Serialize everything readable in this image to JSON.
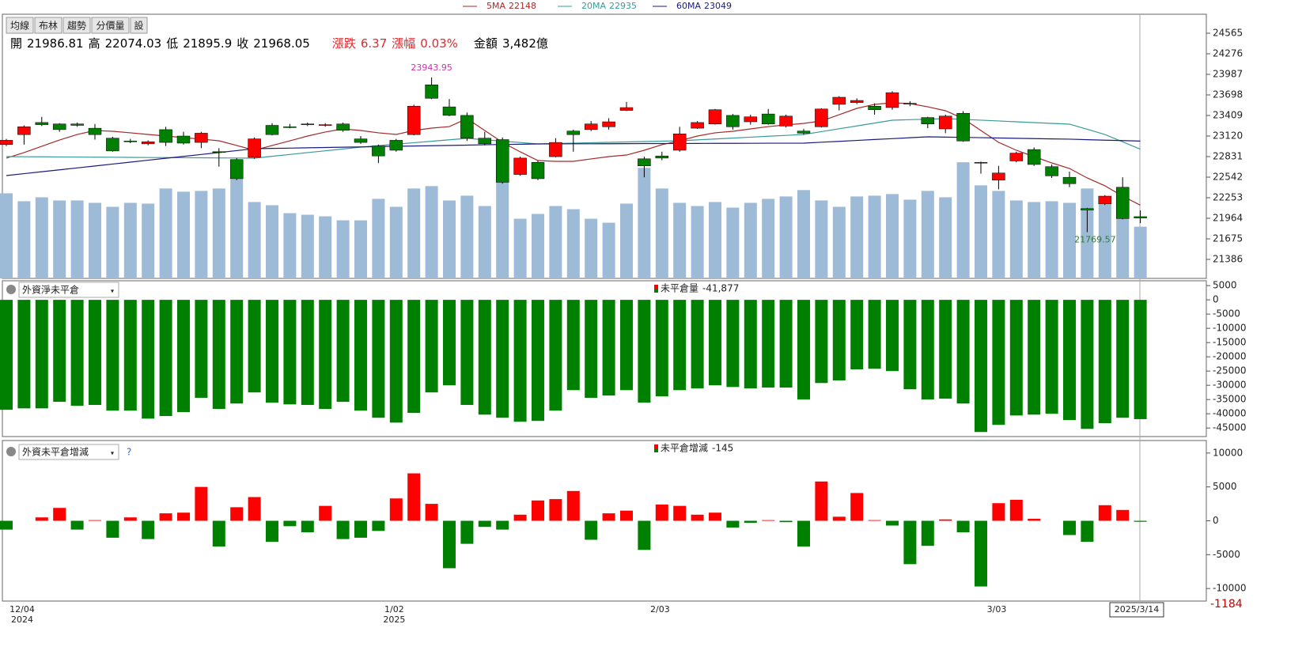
{
  "toolbar": [
    "均線",
    "布林",
    "趨勢",
    "分價量",
    "設"
  ],
  "quote": [
    {
      "label": "開",
      "value": "21986.81"
    },
    {
      "label": "高",
      "value": "22074.03"
    },
    {
      "label": "低",
      "value": "21895.9"
    },
    {
      "label": "收",
      "value": "21968.05"
    },
    {
      "label": "漲跌",
      "value": "6.37",
      "color": "#e0282e"
    },
    {
      "label": "漲幅",
      "value": "0.03%",
      "color": "#e0282e"
    },
    {
      "label": "金額",
      "value": "3,482億"
    }
  ],
  "chart_data": [
    {
      "type": "candlestick",
      "categories": [
        "12/04",
        null,
        null,
        null,
        null,
        null,
        null,
        null,
        null,
        null,
        null,
        null,
        null,
        null,
        null,
        null,
        null,
        null,
        null,
        null,
        null,
        "1/02",
        null,
        null,
        null,
        null,
        null,
        null,
        null,
        null,
        null,
        null,
        null,
        null,
        null,
        null,
        "2/03",
        null,
        null,
        null,
        null,
        null,
        null,
        null,
        null,
        null,
        null,
        null,
        null,
        null,
        null,
        null,
        null,
        null,
        null,
        "3/03",
        null,
        null,
        null,
        null,
        null,
        null,
        null,
        null,
        "2025/3/14"
      ],
      "year_labels": [
        "2024",
        null,
        null,
        null,
        null,
        null,
        null,
        null,
        null,
        null,
        null,
        null,
        null,
        null,
        null,
        null,
        null,
        null,
        null,
        null,
        null,
        "2025",
        null,
        null,
        null,
        null,
        null,
        null,
        null,
        null,
        null,
        null,
        null,
        null,
        null,
        null,
        null,
        null,
        null,
        null,
        null,
        null,
        null,
        null,
        null,
        null,
        null,
        null,
        null,
        null,
        null,
        null,
        null,
        null,
        null,
        null,
        null,
        null,
        null,
        null,
        null,
        null,
        null,
        null,
        null
      ],
      "open": [
        23000,
        23140,
        23310,
        23290,
        23290,
        23230,
        23090,
        23050,
        23010,
        23210,
        23120,
        23030,
        22900,
        22790,
        22820,
        23270,
        23250,
        23280,
        23270,
        23290,
        23080,
        22980,
        23060,
        23140,
        23840,
        23530,
        23410,
        23090,
        23070,
        22580,
        22750,
        22830,
        23190,
        23210,
        23250,
        23480,
        22800,
        22840,
        22920,
        23230,
        23290,
        23410,
        23320,
        23430,
        23260,
        23190,
        23250,
        23565,
        23590,
        23540,
        23520,
        23580,
        23380,
        23220,
        23440,
        22750,
        22500,
        22770,
        22930,
        22690,
        22540,
        22100,
        22165,
        22400,
        21986.81
      ],
      "high": [
        23080,
        23270,
        23390,
        23300,
        23310,
        23290,
        23110,
        23080,
        23060,
        23250,
        23180,
        23180,
        22950,
        22810,
        23100,
        23300,
        23290,
        23310,
        23300,
        23310,
        23120,
        23000,
        23080,
        23560,
        23943.95,
        23640,
        23450,
        23180,
        23100,
        22830,
        22770,
        23090,
        23210,
        23330,
        23370,
        23600,
        22830,
        22900,
        23250,
        23330,
        23500,
        23430,
        23420,
        23500,
        23420,
        23220,
        23510,
        23680,
        23650,
        23580,
        23750,
        23610,
        23390,
        23420,
        23470,
        22760,
        22700,
        22900,
        22960,
        22720,
        22620,
        22110,
        22290,
        22540,
        22074.03
      ],
      "low": [
        22980,
        23000,
        23260,
        23180,
        23250,
        23070,
        22900,
        23020,
        22990,
        22980,
        23000,
        22950,
        22690,
        22500,
        22800,
        23130,
        23230,
        23260,
        23250,
        23180,
        23010,
        22740,
        22900,
        23130,
        23640,
        23400,
        23050,
        22990,
        22450,
        22560,
        22500,
        22820,
        22900,
        23190,
        23210,
        23470,
        22540,
        22780,
        22900,
        23220,
        23280,
        23210,
        23280,
        23280,
        23240,
        23140,
        23240,
        23480,
        23570,
        23420,
        23490,
        23540,
        23230,
        23160,
        23040,
        22590,
        22370,
        22750,
        22700,
        22530,
        22400,
        21769.57,
        22150,
        21950,
        21895.9
      ],
      "close": [
        23060,
        23250,
        23280,
        23210,
        23270,
        23140,
        22910,
        23040,
        23040,
        23030,
        23020,
        23160,
        22890,
        22520,
        23080,
        23140,
        23240,
        23290,
        23280,
        23200,
        23030,
        22840,
        22920,
        23540,
        23650,
        23410,
        23090,
        23010,
        22470,
        22810,
        22520,
        23030,
        23140,
        23290,
        23320,
        23520,
        22700,
        22810,
        23150,
        23310,
        23490,
        23250,
        23390,
        23290,
        23400,
        23160,
        23500,
        23665,
        23620,
        23490,
        23730,
        23570,
        23290,
        23400,
        23050,
        22740,
        22600,
        22880,
        22720,
        22560,
        22450,
        22080,
        22275,
        21960,
        21968.05
      ],
      "up_color": "#ff0000",
      "down_color": "#008000",
      "series": [
        {
          "name": "5MA",
          "color": "#a52a2a",
          "values": [
            22809,
            22887,
            22976,
            23064,
            23142,
            23198,
            23187,
            23165,
            23142,
            23120,
            23098,
            23076,
            23053,
            22987,
            22920,
            22987,
            23053,
            23120,
            23176,
            23220,
            23198,
            23165,
            23142,
            23198,
            23231,
            23253,
            23365,
            23198,
            23031,
            22898,
            22775,
            22764,
            22764,
            22798,
            22831,
            22853,
            22920,
            22998,
            23053,
            23120,
            23165,
            23187,
            23220,
            23253,
            23276,
            23298,
            23331,
            23420,
            23509,
            23565,
            23587,
            23576,
            23531,
            23476,
            23365,
            23198,
            23031,
            22920,
            22831,
            22742,
            22664,
            22531,
            22420,
            22275,
            22148
          ]
        },
        {
          "name": "20MA",
          "color": "#3a9a9a",
          "values": [
            22831,
            22829,
            22828,
            22826,
            22825,
            22823,
            22822,
            22820,
            22818,
            22817,
            22815,
            22814,
            22812,
            22811,
            22809,
            22835,
            22861,
            22887,
            22912,
            22938,
            22964,
            22985,
            23005,
            23026,
            23046,
            23067,
            23087,
            23068,
            23048,
            23029,
            23009,
            23015,
            23020,
            23026,
            23031,
            23037,
            23042,
            23048,
            23053,
            23066,
            23078,
            23091,
            23104,
            23117,
            23129,
            23142,
            23182,
            23222,
            23262,
            23302,
            23342,
            23350,
            23357,
            23365,
            23354,
            23343,
            23332,
            23320,
            23309,
            23298,
            23287,
            23215,
            23142,
            23039,
            22935
          ]
        },
        {
          "name": "60MA",
          "color": "#1a1a80",
          "values": [
            22564,
            22591,
            22618,
            22645,
            22672,
            22699,
            22726,
            22753,
            22780,
            22807,
            22834,
            22861,
            22888,
            22915,
            22942,
            22946,
            22950,
            22955,
            22959,
            22963,
            22967,
            22971,
            22976,
            22980,
            22984,
            22988,
            22992,
            22997,
            23001,
            23005,
            23009,
            23010,
            23011,
            23011,
            23012,
            23013,
            23014,
            23014,
            23015,
            23016,
            23017,
            23017,
            23018,
            23019,
            23019,
            23020,
            23033,
            23045,
            23058,
            23071,
            23083,
            23096,
            23109,
            23105,
            23101,
            23097,
            23092,
            23088,
            23084,
            23080,
            23076,
            23069,
            23062,
            23056,
            23049
          ]
        }
      ],
      "volume": {
        "color": "#9dbbd6",
        "ylim": [
          0,
          17800
        ],
        "values": [
          5735,
          5199,
          5467,
          5253,
          5253,
          5092,
          4824,
          5092,
          5038,
          6057,
          5842,
          5896,
          6057,
          6700,
          5146,
          4931,
          4395,
          4288,
          4181,
          3913,
          3913,
          5360,
          4824,
          6057,
          6218,
          5253,
          5574,
          4878,
          6539,
          4020,
          4342,
          4878,
          4663,
          4020,
          3752,
          5038,
          7450,
          6057,
          5092,
          4878,
          5146,
          4770,
          5092,
          5360,
          5521,
          5950,
          5253,
          4824,
          5521,
          5574,
          5682,
          5306,
          5896,
          5467,
          7826,
          6271,
          5896,
          5253,
          5146,
          5199,
          5092,
          6057,
          4985,
          4020,
          3482
        ]
      },
      "annotations": [
        {
          "index": 24,
          "text": "23943.95",
          "color": "#cc33aa"
        },
        {
          "index": 61,
          "text": "21769.57",
          "color": "#2e7d32"
        }
      ],
      "ylim": [
        21119,
        24832
      ],
      "yticks": [
        24565,
        24276,
        23987,
        23698,
        23409,
        23120,
        22831,
        22542,
        22253,
        21964,
        21675,
        21386
      ]
    },
    {
      "type": "bar",
      "selector": "外資淨未平倉",
      "title": "未平倉量",
      "last_label": "-41,877",
      "color": "#008000",
      "values": [
        -38600,
        -38100,
        -38100,
        -35800,
        -37200,
        -36900,
        -38900,
        -38900,
        -41700,
        -40800,
        -39400,
        -34400,
        -38300,
        -36400,
        -32500,
        -36100,
        -36700,
        -36900,
        -38300,
        -35800,
        -38900,
        -41400,
        -43100,
        -39700,
        -32500,
        -30000,
        -36900,
        -40300,
        -41400,
        -42800,
        -42500,
        -38900,
        -31700,
        -34400,
        -33600,
        -31700,
        -36100,
        -33900,
        -31700,
        -31100,
        -30000,
        -30600,
        -31100,
        -30800,
        -30800,
        -35000,
        -29200,
        -28300,
        -24400,
        -24200,
        -25000,
        -31400,
        -35000,
        -34700,
        -36400,
        -46400,
        -43900,
        -40600,
        -40300,
        -40000,
        -42200,
        -45300,
        -43300,
        -41400,
        -41877
      ],
      "ylim": [
        -48000,
        6700
      ],
      "yticks": [
        5000,
        0,
        -5000,
        -10000,
        -15000,
        -20000,
        -25000,
        -30000,
        -35000,
        -40000,
        -45000
      ]
    },
    {
      "type": "bar",
      "selector": "外資未平倉增減",
      "help": "?",
      "title": "未平倉增減",
      "pos_color": "#ff0000",
      "neg_color": "#008000",
      "values": [
        -1300,
        0,
        500,
        1900,
        -1300,
        100,
        -2500,
        500,
        -2700,
        1100,
        1200,
        5000,
        -3800,
        2000,
        3500,
        -3100,
        -800,
        -1700,
        2200,
        -2700,
        -2500,
        -1500,
        3300,
        7000,
        2500,
        -7000,
        -3400,
        -900,
        -1300,
        900,
        3000,
        3200,
        4400,
        -2800,
        1100,
        1500,
        -4300,
        2400,
        2200,
        900,
        1200,
        -1000,
        -300,
        100,
        -200,
        -3800,
        5800,
        600,
        4100,
        100,
        -700,
        -6400,
        -3700,
        200,
        -1700,
        -9700,
        2600,
        3100,
        300,
        0,
        -2100,
        -3100,
        2300,
        1600,
        -145
      ],
      "ylim": [
        -11850,
        11850
      ],
      "yticks": [
        10000,
        5000,
        0,
        -5000,
        -10000
      ],
      "cursor_value": "-1184"
    }
  ]
}
